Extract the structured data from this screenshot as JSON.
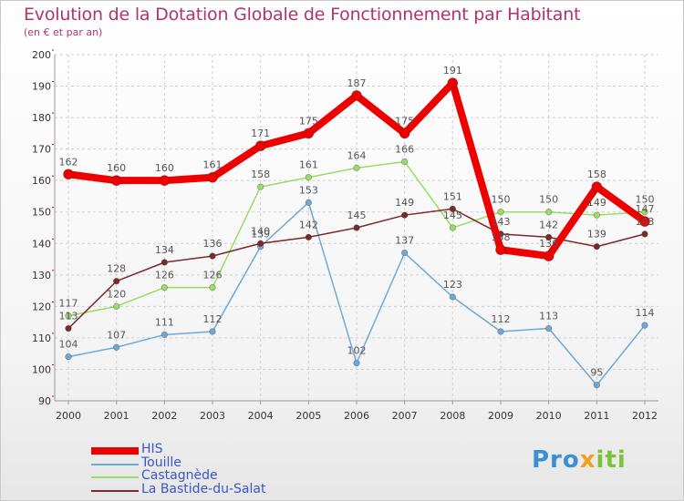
{
  "header": {
    "title": "Evolution de la Dotation Globale de Fonctionnement par Habitant",
    "subtitle": "(en € et par an)"
  },
  "brand": {
    "part1": "Pro",
    "part2": "x",
    "part3": "iti"
  },
  "colors": {
    "axis": "#999999",
    "grid": "#d0d0d0",
    "tick_text": "#333333",
    "label_text": "#555555",
    "accent_red_ticks": "#cc0000"
  },
  "chart_data": {
    "type": "line",
    "title": "Evolution de la Dotation Globale de Fonctionnement par Habitant",
    "subtitle": "(en € et par an)",
    "xlabel": "",
    "ylabel": "",
    "x": [
      2000,
      2001,
      2002,
      2003,
      2004,
      2005,
      2006,
      2007,
      2008,
      2009,
      2010,
      2011,
      2012
    ],
    "ylim": [
      90,
      200
    ],
    "yticks": [
      90,
      100,
      110,
      120,
      130,
      140,
      150,
      160,
      170,
      180,
      190,
      200
    ],
    "grid": true,
    "legend": "bottom-left",
    "series": [
      {
        "name": "HIS",
        "color": "#ee0000",
        "lineWidth": 8,
        "markerRadius": 5.5,
        "values": [
          162,
          160,
          160,
          161,
          171,
          175,
          187,
          175,
          191,
          138,
          136,
          158,
          147
        ]
      },
      {
        "name": "Touille",
        "color": "#6fa8d6",
        "lineWidth": 1.5,
        "markerRadius": 3.3,
        "values": [
          104,
          107,
          111,
          112,
          139,
          153,
          102,
          137,
          123,
          112,
          113,
          95,
          114
        ]
      },
      {
        "name": "Castagnède",
        "color": "#99dd66",
        "lineWidth": 1.5,
        "markerRadius": 3.3,
        "values": [
          117,
          120,
          126,
          126,
          158,
          161,
          164,
          166,
          145,
          150,
          150,
          149,
          150
        ]
      },
      {
        "name": "La Bastide-du-Salat",
        "color": "#7a2a2a",
        "lineWidth": 1.5,
        "markerRadius": 3.3,
        "values": [
          113,
          128,
          134,
          136,
          140,
          142,
          145,
          149,
          151,
          143,
          142,
          139,
          143
        ]
      }
    ]
  }
}
